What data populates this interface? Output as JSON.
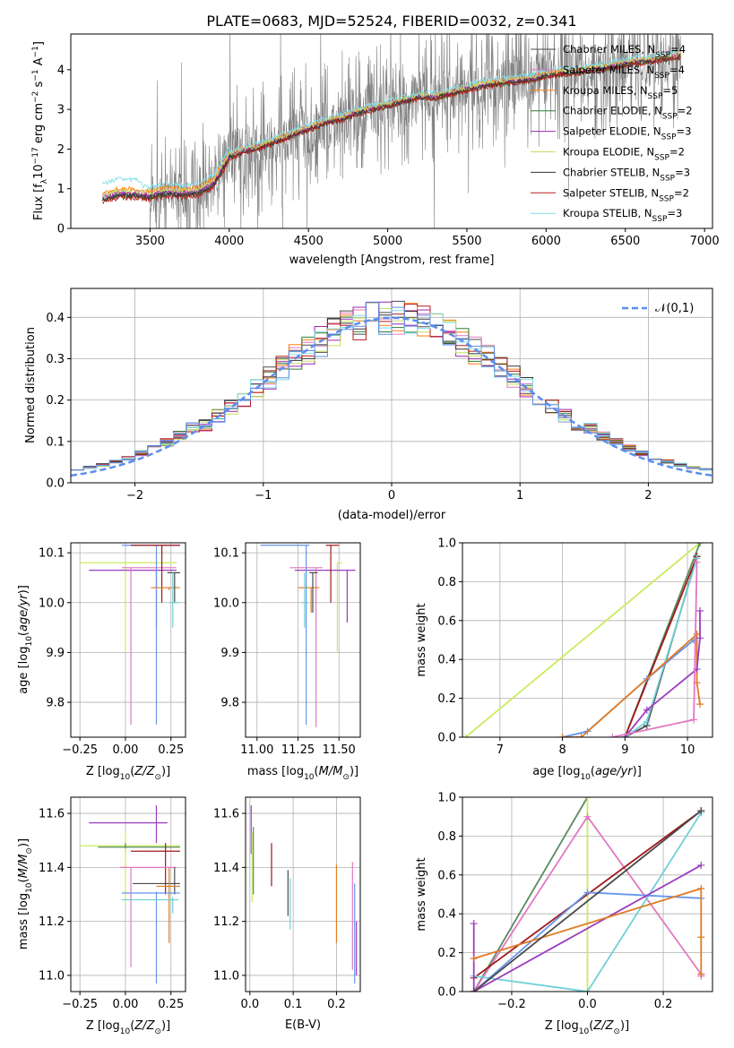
{
  "title": "PLATE=0683, MJD=52524, FIBERID=0032, z=0.341",
  "colors": {
    "Chabrier MILES": "#4a4a4a",
    "Salpeter MILES": "#e377c2",
    "Kroupa MILES": "#ff7f0e",
    "Chabrier ELODIE": "#2e7d32",
    "Salpeter ELODIE": "#9c27b0",
    "Kroupa ELODIE": "#c6e05a",
    "Chabrier STELIB": "#333333",
    "Salpeter STELIB": "#b71c1c",
    "Kroupa STELIB": "#80deea",
    "data": "#808080",
    "normal": "#5b8def",
    "p_ms": "#4a4a4a",
    "p_ss": "#e377c2",
    "p_ks": "#e07b24",
    "p_ce": "#5a8a60",
    "p_se": "#9c3cc0",
    "p_ke": "#c9ec5c",
    "p_cs": "#6495ed",
    "p_st": "#a01818",
    "p_kt": "#70d0d8"
  },
  "chart_data": [
    {
      "id": "spectrum",
      "type": "line",
      "title": "PLATE=0683, MJD=52524, FIBERID=0032, z=0.341",
      "xlabel": "wavelength [Angstrom, rest frame]",
      "ylabel": "Flux [f_λ 10^-17 erg cm^-2 s^-1 A^-1]",
      "xlim": [
        3000,
        7050
      ],
      "ylim": [
        0,
        4.9
      ],
      "xticks": [
        3500,
        4000,
        4500,
        5000,
        5500,
        6000,
        6500,
        7000
      ],
      "yticks": [
        0,
        1,
        2,
        3,
        4
      ],
      "legend_placement": "right",
      "model_curve": {
        "x": [
          3200,
          3300,
          3400,
          3500,
          3600,
          3700,
          3800,
          3900,
          4000,
          4100,
          4200,
          4300,
          4400,
          4500,
          4600,
          4700,
          4800,
          4900,
          5000,
          5100,
          5200,
          5300,
          5400,
          5500,
          5600,
          5700,
          5800,
          5900,
          6000,
          6100,
          6200,
          6300,
          6400,
          6500,
          6600,
          6700,
          6800,
          6850
        ],
        "y": [
          0.75,
          0.85,
          0.85,
          0.8,
          0.9,
          0.85,
          0.9,
          1.1,
          1.8,
          1.95,
          2.05,
          2.2,
          2.35,
          2.5,
          2.65,
          2.75,
          2.9,
          3.0,
          3.1,
          3.2,
          3.3,
          3.3,
          3.4,
          3.5,
          3.6,
          3.65,
          3.7,
          3.75,
          3.85,
          3.9,
          3.95,
          4.0,
          4.05,
          4.15,
          4.2,
          4.25,
          4.3,
          4.35
        ]
      },
      "series": [
        {
          "name": "Chabrier MILES, N_SSP=4",
          "color_key": "Chabrier MILES",
          "offset": 0.0
        },
        {
          "name": "Salpeter MILES, N_SSP=4",
          "color_key": "Salpeter MILES",
          "offset": 0.04
        },
        {
          "name": "Kroupa MILES, N_SSP=5",
          "color_key": "Kroupa MILES",
          "offset": 0.07
        },
        {
          "name": "Chabrier ELODIE, N_SSP=2",
          "color_key": "Chabrier ELODIE",
          "offset": -0.02
        },
        {
          "name": "Salpeter ELODIE, N_SSP=3",
          "color_key": "Salpeter ELODIE",
          "offset": 0.02
        },
        {
          "name": "Kroupa ELODIE, N_SSP=2",
          "color_key": "Kroupa ELODIE",
          "offset": 0.05
        },
        {
          "name": "Chabrier STELIB, N_SSP=3",
          "color_key": "Chabrier STELIB",
          "offset": -0.01
        },
        {
          "name": "Salpeter STELIB, N_SSP=2",
          "color_key": "Salpeter STELIB",
          "offset": -0.04
        },
        {
          "name": "Kroupa STELIB, N_SSP=3",
          "color_key": "Kroupa STELIB",
          "offset": 0.12
        }
      ]
    },
    {
      "id": "residuals",
      "type": "bar",
      "xlabel": "(data-model)/error",
      "ylabel": "Normed distribution",
      "xlim": [
        -2.5,
        2.5
      ],
      "ylim": [
        0,
        0.47
      ],
      "xticks": [
        -2,
        -1,
        0,
        1,
        2
      ],
      "yticks": [
        0.0,
        0.1,
        0.2,
        0.3,
        0.4
      ],
      "grid": true,
      "legend": "𝒩(0,1)",
      "legend_placement": "top-right"
    },
    {
      "id": "age_Z",
      "type": "scatter",
      "xlabel": "Z [log10(Z/Z⊙)]",
      "ylabel": "age [log10(age/yr)]",
      "xlim": [
        -0.3,
        0.33
      ],
      "ylim": [
        9.73,
        10.12
      ],
      "xticks": [
        -0.25,
        0.0,
        0.25
      ],
      "yticks": [
        9.8,
        9.9,
        10.0,
        10.1
      ],
      "grid": true,
      "points": [
        {
          "ck": "p_ke",
          "x": 0.0,
          "xe": [
            -0.25,
            0.28
          ],
          "y": 10.08,
          "ye": [
            9.9,
            10.08
          ]
        },
        {
          "ck": "p_se",
          "x": 0.17,
          "xe": [
            -0.2,
            0.28
          ],
          "y": 10.065,
          "ye": [
            9.95,
            10.065
          ]
        },
        {
          "ck": "p_ss",
          "x": 0.03,
          "xe": [
            -0.02,
            0.28
          ],
          "y": 10.07,
          "ye": [
            9.755,
            10.07
          ]
        },
        {
          "ck": "p_cs",
          "x": 0.17,
          "xe": [
            -0.02,
            0.3
          ],
          "y": 10.115,
          "ye": [
            9.755,
            10.115
          ]
        },
        {
          "ck": "p_st",
          "x": 0.2,
          "xe": [
            0.03,
            0.3
          ],
          "y": 10.115,
          "ye": [
            10.0,
            10.115
          ]
        },
        {
          "ck": "p_ks",
          "x": 0.24,
          "xe": [
            0.14,
            0.3
          ],
          "y": 10.03,
          "ye": [
            10.025,
            10.03
          ]
        },
        {
          "ck": "p_ms",
          "x": 0.27,
          "xe": [
            0.23,
            0.3
          ],
          "y": 10.06,
          "ye": [
            10.0,
            10.06
          ]
        },
        {
          "ck": "p_kt",
          "x": 0.26,
          "xe": [
            0.24,
            0.3
          ],
          "y": 10.0,
          "ye": [
            9.95,
            10.06
          ]
        }
      ]
    },
    {
      "id": "age_mass",
      "type": "scatter",
      "xlabel": "mass [log10(M/M⊙)]",
      "ylabel": "",
      "xlim": [
        10.93,
        11.63
      ],
      "ylim": [
        9.73,
        10.12
      ],
      "xticks": [
        11.0,
        11.25,
        11.5
      ],
      "yticks": [
        9.8,
        9.9,
        10.0,
        10.1
      ],
      "grid": true,
      "points": [
        {
          "ck": "p_ke",
          "x": 11.49,
          "xe": [
            11.49,
            11.52
          ],
          "y": 10.08,
          "ye": [
            9.9,
            10.08
          ]
        },
        {
          "ck": "p_se",
          "x": 11.55,
          "xe": [
            11.23,
            11.6
          ],
          "y": 10.065,
          "ye": [
            9.96,
            10.065
          ]
        },
        {
          "ck": "p_ss",
          "x": 11.36,
          "xe": [
            11.2,
            11.4
          ],
          "y": 10.07,
          "ye": [
            9.75,
            10.07
          ]
        },
        {
          "ck": "p_cs",
          "x": 11.3,
          "xe": [
            11.02,
            11.32
          ],
          "y": 10.115,
          "ye": [
            9.755,
            10.115
          ]
        },
        {
          "ck": "p_st",
          "x": 11.45,
          "xe": [
            11.42,
            11.5
          ],
          "y": 10.115,
          "ye": [
            10.0,
            10.115
          ]
        },
        {
          "ck": "p_ks",
          "x": 11.33,
          "xe": [
            11.25,
            11.38
          ],
          "y": 10.03,
          "ye": [
            9.98,
            10.03
          ]
        },
        {
          "ck": "p_ms",
          "x": 11.34,
          "xe": [
            11.32,
            11.37
          ],
          "y": 10.06,
          "ye": [
            9.98,
            10.06
          ]
        },
        {
          "ck": "p_kt",
          "x": 11.29,
          "xe": [
            11.27,
            11.31
          ],
          "y": 10.0,
          "ye": [
            9.95,
            10.06
          ]
        }
      ]
    },
    {
      "id": "mw_age",
      "type": "line",
      "xlabel": "age [log10(age/yr)]",
      "ylabel": "mass weight",
      "xlim": [
        6.4,
        10.4
      ],
      "ylim": [
        0,
        1
      ],
      "xticks": [
        7,
        8,
        9,
        10
      ],
      "yticks": [
        0.0,
        0.2,
        0.4,
        0.6,
        0.8,
        1.0
      ],
      "grid": true,
      "series": [
        {
          "ck": "p_ke",
          "x": [
            6.45,
            10.2
          ],
          "y": [
            0.0,
            1.0
          ]
        },
        {
          "ck": "p_ce",
          "x": [
            9.0,
            10.2
          ],
          "y": [
            0.0,
            1.0
          ]
        },
        {
          "ck": "p_ms",
          "x": [
            9.0,
            9.35,
            10.15
          ],
          "y": [
            0.0,
            0.06,
            0.93
          ]
        },
        {
          "ck": "p_st",
          "x": [
            9.0,
            10.15
          ],
          "y": [
            0.0,
            0.93
          ]
        },
        {
          "ck": "p_kt",
          "x": [
            9.0,
            9.35,
            10.15
          ],
          "y": [
            0.0,
            0.08,
            0.92
          ]
        },
        {
          "ck": "p_cs",
          "x": [
            8.0,
            8.4,
            9.35,
            10.1
          ],
          "y": [
            0.0,
            0.03,
            0.3,
            0.5
          ]
        },
        {
          "ck": "p_ks",
          "x": [
            8.0,
            8.3,
            10.15,
            10.15,
            10.2
          ],
          "y": [
            0.0,
            0.0,
            0.53,
            0.28,
            0.17
          ]
        },
        {
          "ck": "p_se",
          "x": [
            9.0,
            9.35,
            10.15,
            10.2,
            10.2
          ],
          "y": [
            0.0,
            0.14,
            0.35,
            0.51,
            0.65
          ]
        },
        {
          "ck": "p_ss",
          "x": [
            8.8,
            10.1,
            10.15
          ],
          "y": [
            0.0,
            0.09,
            0.9
          ]
        }
      ]
    },
    {
      "id": "mass_Z",
      "type": "scatter",
      "xlabel": "Z [log10(Z/Z⊙)]",
      "ylabel": "mass [log10(M/M⊙)]",
      "xlim": [
        -0.3,
        0.33
      ],
      "ylim": [
        10.94,
        11.66
      ],
      "xticks": [
        -0.25,
        0.0,
        0.25
      ],
      "yticks": [
        11.0,
        11.2,
        11.4,
        11.6
      ],
      "grid": true,
      "points": [
        {
          "ck": "p_se",
          "x": 0.17,
          "xe": [
            -0.2,
            0.23
          ],
          "y": 11.565,
          "ye": [
            11.49,
            11.63
          ]
        },
        {
          "ck": "p_ke",
          "x": 0.0,
          "xe": [
            -0.25,
            0.3
          ],
          "y": 11.48,
          "ye": [
            11.27,
            11.53
          ]
        },
        {
          "ck": "p_ce",
          "x": 0.0,
          "xe": [
            -0.15,
            0.3
          ],
          "y": 11.475,
          "ye": [
            11.47,
            11.49
          ]
        },
        {
          "ck": "p_st",
          "x": 0.22,
          "xe": [
            0.03,
            0.3
          ],
          "y": 11.46,
          "ye": [
            11.3,
            11.49
          ]
        },
        {
          "ck": "p_ss",
          "x": 0.03,
          "xe": [
            -0.03,
            0.28
          ],
          "y": 11.4,
          "ye": [
            11.03,
            11.4
          ]
        },
        {
          "ck": "p_ms",
          "x": 0.27,
          "xe": [
            0.04,
            0.3
          ],
          "y": 11.34,
          "ye": [
            11.3,
            11.4
          ]
        },
        {
          "ck": "p_ks",
          "x": 0.24,
          "xe": [
            0.17,
            0.3
          ],
          "y": 11.33,
          "ye": [
            11.12,
            11.4
          ]
        },
        {
          "ck": "p_cs",
          "x": 0.17,
          "xe": [
            -0.02,
            0.3
          ],
          "y": 11.305,
          "ye": [
            10.97,
            11.31
          ]
        },
        {
          "ck": "p_kt",
          "x": 0.26,
          "xe": [
            -0.02,
            0.29
          ],
          "y": 11.28,
          "ye": [
            11.23,
            11.29
          ]
        }
      ]
    },
    {
      "id": "mass_EBV",
      "type": "scatter",
      "xlabel": "E(B-V)",
      "ylabel": "",
      "xlim": [
        -0.01,
        0.255
      ],
      "ylim": [
        10.94,
        11.66
      ],
      "xticks": [
        0.0,
        0.1,
        0.2
      ],
      "yticks": [
        11.0,
        11.2,
        11.4,
        11.6
      ],
      "grid": true,
      "points": [
        {
          "ck": "p_se",
          "x": 0.003,
          "ye": [
            11.45,
            11.63
          ]
        },
        {
          "ck": "p_ke",
          "x": 0.005,
          "ye": [
            11.27,
            11.53
          ]
        },
        {
          "ck": "p_ce",
          "x": 0.008,
          "ye": [
            11.3,
            11.55
          ]
        },
        {
          "ck": "p_st",
          "x": 0.05,
          "ye": [
            11.33,
            11.49
          ]
        },
        {
          "ck": "p_ms",
          "x": 0.088,
          "ye": [
            11.22,
            11.39
          ]
        },
        {
          "ck": "p_kt",
          "x": 0.093,
          "ye": [
            11.17,
            11.36
          ]
        },
        {
          "ck": "p_ks",
          "x": 0.2,
          "ye": [
            11.12,
            11.41
          ]
        },
        {
          "ck": "p_ss",
          "x": 0.237,
          "ye": [
            11.02,
            11.42
          ]
        },
        {
          "ck": "p_cs",
          "x": 0.242,
          "ye": [
            10.97,
            11.34
          ]
        },
        {
          "ck": "p_se",
          "x": 0.246,
          "ye": [
            11.0,
            11.2
          ]
        }
      ]
    },
    {
      "id": "mw_Z",
      "type": "line",
      "xlabel": "Z [log10(Z/Z⊙)]",
      "ylabel": "mass weight",
      "xlim": [
        -0.33,
        0.33
      ],
      "ylim": [
        0,
        1
      ],
      "xticks": [
        -0.2,
        0.0,
        0.2
      ],
      "yticks": [
        0.0,
        0.2,
        0.4,
        0.6,
        0.8,
        1.0
      ],
      "grid": true,
      "series": [
        {
          "ck": "p_ce",
          "x": [
            -0.3,
            0.0
          ],
          "y": [
            0.0,
            1.0
          ]
        },
        {
          "ck": "p_ke",
          "x": [
            0.0,
            0.0
          ],
          "y": [
            0.0,
            1.0
          ]
        },
        {
          "ck": "p_ss",
          "x": [
            -0.3,
            0.0,
            0.3,
            0.3
          ],
          "y": [
            0.0,
            0.9,
            0.09,
            0.08
          ]
        },
        {
          "ck": "p_st",
          "x": [
            -0.3,
            0.3
          ],
          "y": [
            0.07,
            0.93
          ]
        },
        {
          "ck": "p_kt",
          "x": [
            -0.3,
            0.0,
            0.3
          ],
          "y": [
            0.08,
            0.0,
            0.92
          ]
        },
        {
          "ck": "p_cs",
          "x": [
            -0.3,
            0.0,
            0.3
          ],
          "y": [
            0.0,
            0.51,
            0.48
          ]
        },
        {
          "ck": "p_se",
          "x": [
            -0.3,
            -0.3,
            0.3
          ],
          "y": [
            0.35,
            0.0,
            0.65
          ]
        },
        {
          "ck": "p_ks",
          "x": [
            -0.3,
            0.3,
            0.3,
            0.3
          ],
          "y": [
            0.17,
            0.53,
            0.28,
            0.09
          ]
        },
        {
          "ck": "p_ms",
          "x": [
            -0.3,
            0.3
          ],
          "y": [
            0.0,
            0.93
          ]
        }
      ]
    }
  ]
}
